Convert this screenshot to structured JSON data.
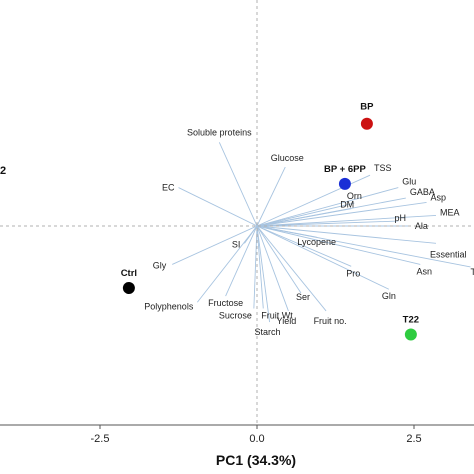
{
  "chart_data": {
    "type": "scatter",
    "subtype": "pca-biplot",
    "xlabel": "PC1 (34.3%)",
    "ylabel_partial": "2",
    "xlim": [
      -3.45,
      3.45
    ],
    "ylim": [
      -2.7,
      2.15
    ],
    "x_ticks": [
      {
        "value": -2.5,
        "label": "-2.5"
      },
      {
        "value": 0.0,
        "label": "0.0"
      },
      {
        "value": 2.5,
        "label": "2.5"
      }
    ],
    "colors": {
      "loading_line": "#a8c4e0",
      "origin_dash": "#b0b0b0",
      "Ctrl": "#000000",
      "BP": "#cc1111",
      "BP + 6PP": "#1a2fd6",
      "T22": "#2ecc40"
    },
    "samples": [
      {
        "name": "BP",
        "x": 1.75,
        "y": 1.65
      },
      {
        "name": "BP + 6PP",
        "x": 1.4,
        "y": 0.68
      },
      {
        "name": "Ctrl",
        "x": -2.04,
        "y": -1.0
      },
      {
        "name": "T22",
        "x": 2.45,
        "y": -1.75
      }
    ],
    "loadings": [
      {
        "name": "Soluble proteins",
        "x": -0.6,
        "y": 1.35
      },
      {
        "name": "Glucose",
        "x": 0.45,
        "y": 0.95
      },
      {
        "name": "EC",
        "x": -1.25,
        "y": 0.62
      },
      {
        "name": "TSS",
        "x": 1.8,
        "y": 0.82
      },
      {
        "name": "Glu",
        "x": 2.25,
        "y": 0.62
      },
      {
        "name": "GABA",
        "x": 2.37,
        "y": 0.45
      },
      {
        "name": "Asp",
        "x": 2.7,
        "y": 0.38
      },
      {
        "name": "Orn",
        "x": 1.55,
        "y": 0.37
      },
      {
        "name": "DM",
        "x": 1.5,
        "y": 0.28
      },
      {
        "name": "MEA",
        "x": 2.85,
        "y": 0.17
      },
      {
        "name": "pH",
        "x": 2.25,
        "y": 0.08
      },
      {
        "name": "Ala",
        "x": 2.45,
        "y": 0.0
      },
      {
        "name": "Lycopene",
        "x": 0.95,
        "y": -0.18
      },
      {
        "name": "Essential",
        "x": 2.85,
        "y": -0.28
      },
      {
        "name": "SI",
        "x": -0.2,
        "y": -0.28
      },
      {
        "name": "Gly",
        "x": -1.35,
        "y": -0.62
      },
      {
        "name": "Asn",
        "x": 2.6,
        "y": -0.62
      },
      {
        "name": "T",
        "x": 3.4,
        "y": -0.66
      },
      {
        "name": "Pro",
        "x": 1.5,
        "y": -0.65
      },
      {
        "name": "Gln",
        "x": 2.1,
        "y": -1.02
      },
      {
        "name": "Ser",
        "x": 0.7,
        "y": -1.08
      },
      {
        "name": "Fructose",
        "x": -0.5,
        "y": -1.13
      },
      {
        "name": "Polyphenols",
        "x": -0.95,
        "y": -1.23
      },
      {
        "name": "Yield",
        "x": 0.5,
        "y": -1.37
      },
      {
        "name": "Fruit no.",
        "x": 1.1,
        "y": -1.37
      },
      {
        "name": "Sucrose",
        "x": -0.05,
        "y": -1.33
      },
      {
        "name": "Fruit Wt",
        "x": 0.1,
        "y": -1.33
      },
      {
        "name": "Starch",
        "x": 0.2,
        "y": -1.55
      }
    ]
  }
}
